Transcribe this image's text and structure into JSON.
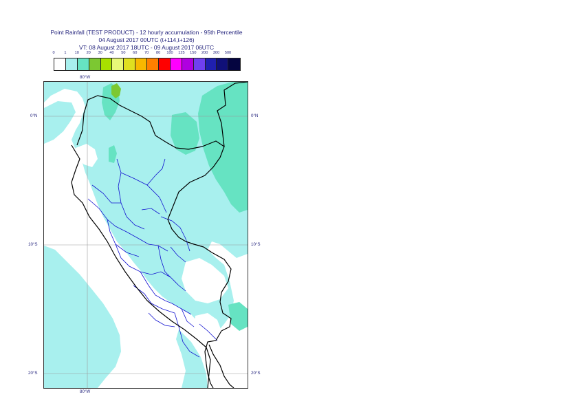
{
  "title": {
    "line1": "Point Rainfall (TEST PRODUCT) - 12 hourly accumulation - 95th Percentile",
    "line2": "04 August 2017 00UTC (t+114,t+126)",
    "line3": "VT: 08 August 2017 18UTC - 09 August 2017 06UTC"
  },
  "legend": {
    "labels": [
      "0",
      "1",
      "10",
      "20",
      "30",
      "40",
      "50",
      "60",
      "70",
      "80",
      "100",
      "125",
      "150",
      "200",
      "300",
      "500"
    ],
    "colors": [
      "#ffffff",
      "#a8f0ee",
      "#66e3c2",
      "#7cc832",
      "#a8e000",
      "#e8f878",
      "#e0e020",
      "#f8b800",
      "#ff7f00",
      "#ff0000",
      "#ff00ff",
      "#b000e0",
      "#7040f0",
      "#2020b0",
      "#101078",
      "#050540"
    ]
  },
  "axes": {
    "top_lon": "80°W",
    "bottom_lon": "80°W",
    "lat_labels": [
      "0°N",
      "10°S",
      "20°S"
    ]
  },
  "colors": {
    "background_rain": "#a8f0ee",
    "heavier_rain": "#66e3c2",
    "peak_rain": "#7cc832",
    "border": "#000000",
    "regions": "#1010d0",
    "grid": "#999999"
  }
}
